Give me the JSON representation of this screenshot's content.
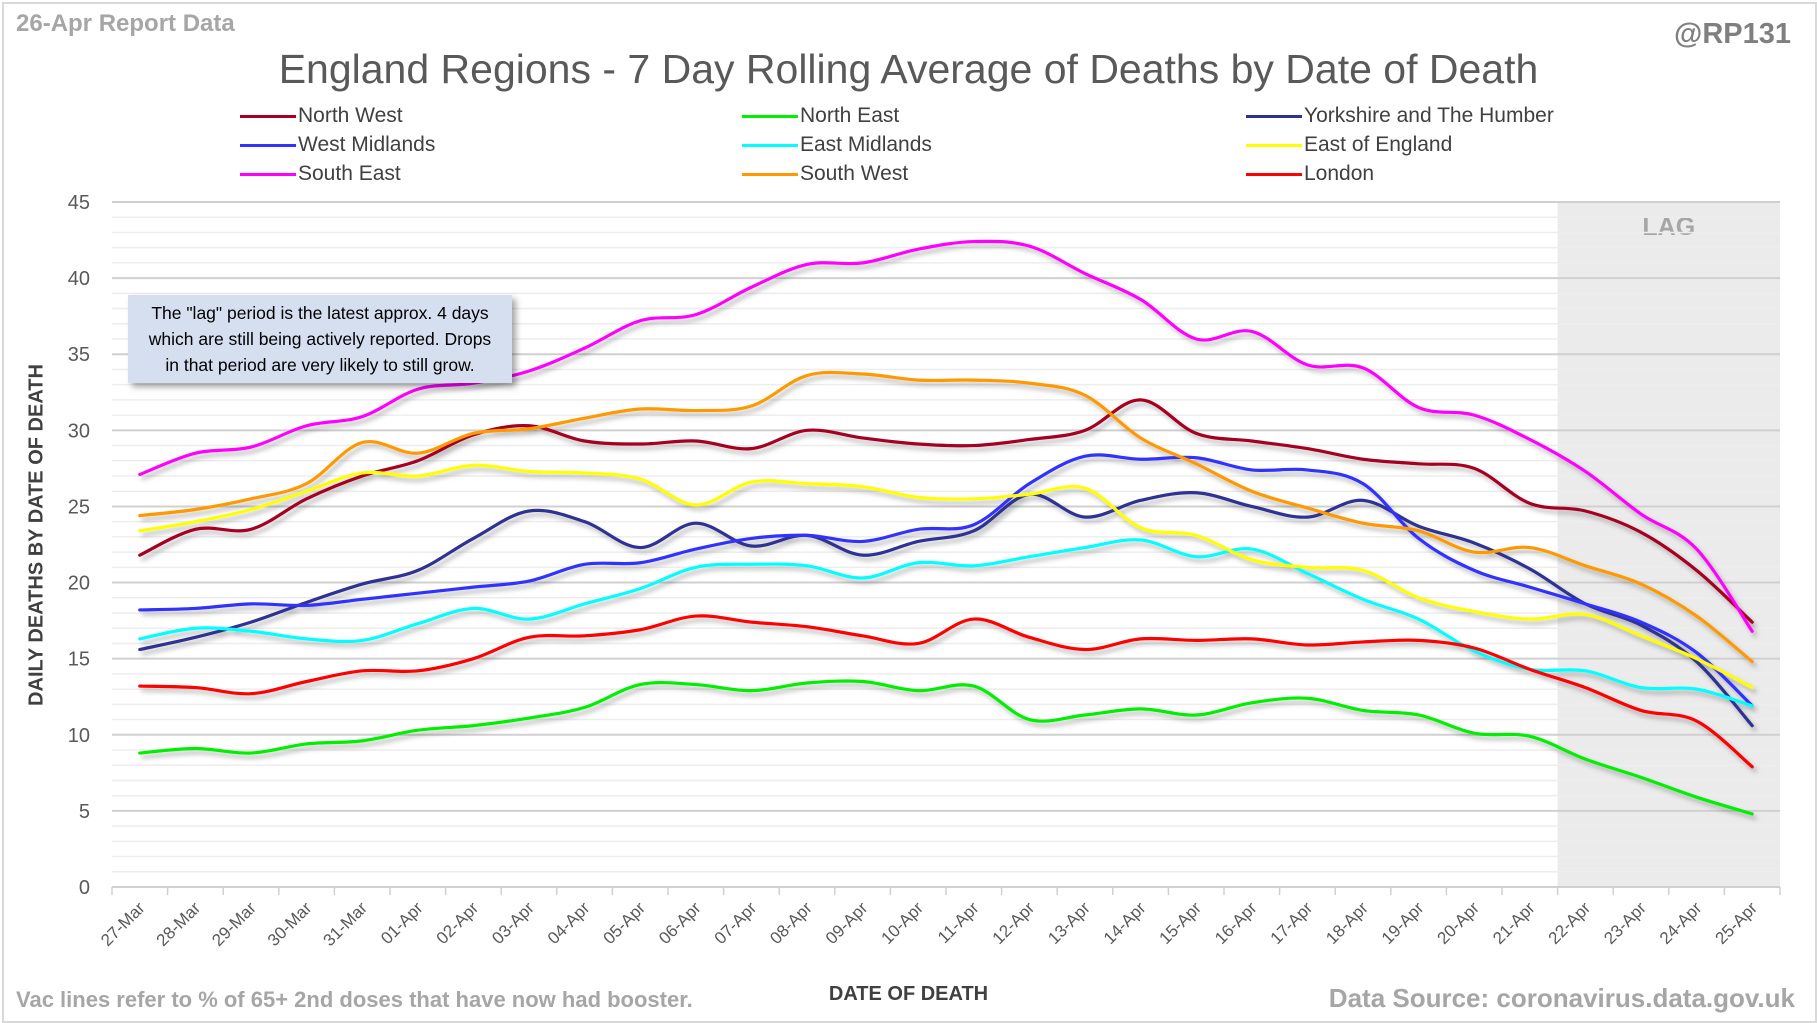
{
  "header": {
    "report_date": "26-Apr Report Data",
    "handle": "@RP131"
  },
  "footer": {
    "note": "Vac lines refer to % of 65+ 2nd doses that have now had booster.",
    "source": "Data Source: coronavirus.data.gov.uk"
  },
  "annotation": {
    "lag_label": "LAG",
    "callout_lines": [
      "The \"lag\" period is the latest approx. 4 days",
      "which are still being actively reported.  Drops",
      "in that period are very likely to still grow."
    ]
  },
  "chart_data": {
    "type": "line",
    "title": "England Regions - 7 Day Rolling Average of Deaths by Date of Death",
    "xlabel": "DATE OF DEATH",
    "ylabel": "DAILY DEATHS BY DATE OF DEATH",
    "ylim": [
      0,
      45
    ],
    "yticks": [
      0,
      5,
      10,
      15,
      20,
      25,
      30,
      35,
      40,
      45
    ],
    "grid": true,
    "legend_position": "top",
    "lag_start_category": "22-Apr",
    "categories": [
      "27-Mar",
      "28-Mar",
      "29-Mar",
      "30-Mar",
      "31-Mar",
      "01-Apr",
      "02-Apr",
      "03-Apr",
      "04-Apr",
      "05-Apr",
      "06-Apr",
      "07-Apr",
      "08-Apr",
      "09-Apr",
      "10-Apr",
      "11-Apr",
      "12-Apr",
      "13-Apr",
      "14-Apr",
      "15-Apr",
      "16-Apr",
      "17-Apr",
      "18-Apr",
      "19-Apr",
      "20-Apr",
      "21-Apr",
      "22-Apr",
      "23-Apr",
      "24-Apr",
      "25-Apr"
    ],
    "series": [
      {
        "name": "North West",
        "color": "#a50021",
        "values": [
          21.8,
          23.5,
          23.5,
          25.5,
          27,
          28,
          29.7,
          30.3,
          29.3,
          29.1,
          29.3,
          28.8,
          30,
          29.5,
          29.1,
          29,
          29.4,
          30,
          32,
          29.8,
          29.3,
          28.8,
          28.1,
          27.8,
          27.5,
          25.2,
          24.7,
          23.3,
          20.8,
          17.4
        ]
      },
      {
        "name": "North East",
        "color": "#00ee00",
        "values": [
          8.8,
          9.1,
          8.8,
          9.4,
          9.6,
          10.3,
          10.6,
          11.1,
          11.8,
          13.3,
          13.3,
          12.9,
          13.4,
          13.5,
          12.9,
          13.2,
          11,
          11.3,
          11.7,
          11.3,
          12.1,
          12.4,
          11.6,
          11.3,
          10.1,
          9.9,
          8.4,
          7.2,
          5.9,
          4.8
        ]
      },
      {
        "name": "Yorkshire and The Humber",
        "color": "#2e3192",
        "values": [
          15.6,
          16.4,
          17.4,
          18.7,
          19.9,
          20.8,
          22.9,
          24.7,
          24,
          22.3,
          23.9,
          22.4,
          23.1,
          21.8,
          22.7,
          23.4,
          25.8,
          24.3,
          25.4,
          25.9,
          25,
          24.3,
          25.4,
          23.7,
          22.6,
          20.9,
          18.6,
          17.2,
          14.8,
          10.6
        ]
      },
      {
        "name": "West Midlands",
        "color": "#3333ff",
        "values": [
          18.2,
          18.3,
          18.6,
          18.5,
          18.9,
          19.3,
          19.7,
          20.1,
          21.2,
          21.3,
          22.2,
          22.9,
          23.1,
          22.7,
          23.5,
          23.8,
          26.5,
          28.3,
          28.1,
          28.2,
          27.4,
          27.4,
          26.5,
          22.9,
          20.8,
          19.7,
          18.6,
          17.4,
          15.4,
          11.9
        ]
      },
      {
        "name": "East Midlands",
        "color": "#00ffff",
        "values": [
          16.3,
          17,
          16.8,
          16.3,
          16.2,
          17.3,
          18.3,
          17.6,
          18.6,
          19.6,
          21,
          21.2,
          21.1,
          20.3,
          21.3,
          21.1,
          21.7,
          22.3,
          22.8,
          21.7,
          22.2,
          20.6,
          18.9,
          17.6,
          15.5,
          14.3,
          14.2,
          13.1,
          13,
          11.9
        ]
      },
      {
        "name": "East of England",
        "color": "#ffff00",
        "values": [
          23.4,
          24,
          24.8,
          26,
          27.2,
          27,
          27.7,
          27.3,
          27.2,
          26.8,
          25.1,
          26.6,
          26.5,
          26.3,
          25.6,
          25.5,
          25.8,
          26.2,
          23.6,
          23.1,
          21.5,
          21,
          20.8,
          19,
          18.1,
          17.6,
          17.9,
          16.5,
          15,
          13.1
        ]
      },
      {
        "name": "South East",
        "color": "#ff00ff",
        "values": [
          27.1,
          28.5,
          28.9,
          30.3,
          30.9,
          32.7,
          33.1,
          33.9,
          35.4,
          37.2,
          37.6,
          39.4,
          40.9,
          41,
          41.9,
          42.4,
          42.1,
          40.3,
          38.6,
          36,
          36.5,
          34.3,
          34.1,
          31.5,
          31,
          29.4,
          27.3,
          24.5,
          22.2,
          16.8
        ]
      },
      {
        "name": "South West",
        "color": "#ff9900",
        "values": [
          24.4,
          24.8,
          25.5,
          26.5,
          29.2,
          28.5,
          29.8,
          30.1,
          30.8,
          31.4,
          31.3,
          31.6,
          33.6,
          33.7,
          33.3,
          33.3,
          33.1,
          32.3,
          29.5,
          27.8,
          26,
          24.9,
          23.9,
          23.4,
          22,
          22.3,
          21.1,
          19.9,
          17.8,
          14.8
        ]
      },
      {
        "name": "London",
        "color": "#ff0000",
        "values": [
          13.2,
          13.1,
          12.7,
          13.5,
          14.2,
          14.2,
          15,
          16.4,
          16.5,
          16.9,
          17.8,
          17.4,
          17.1,
          16.5,
          16,
          17.6,
          16.4,
          15.6,
          16.3,
          16.2,
          16.3,
          15.9,
          16.1,
          16.2,
          15.7,
          14.3,
          13.1,
          11.6,
          10.9,
          7.9
        ]
      }
    ]
  }
}
